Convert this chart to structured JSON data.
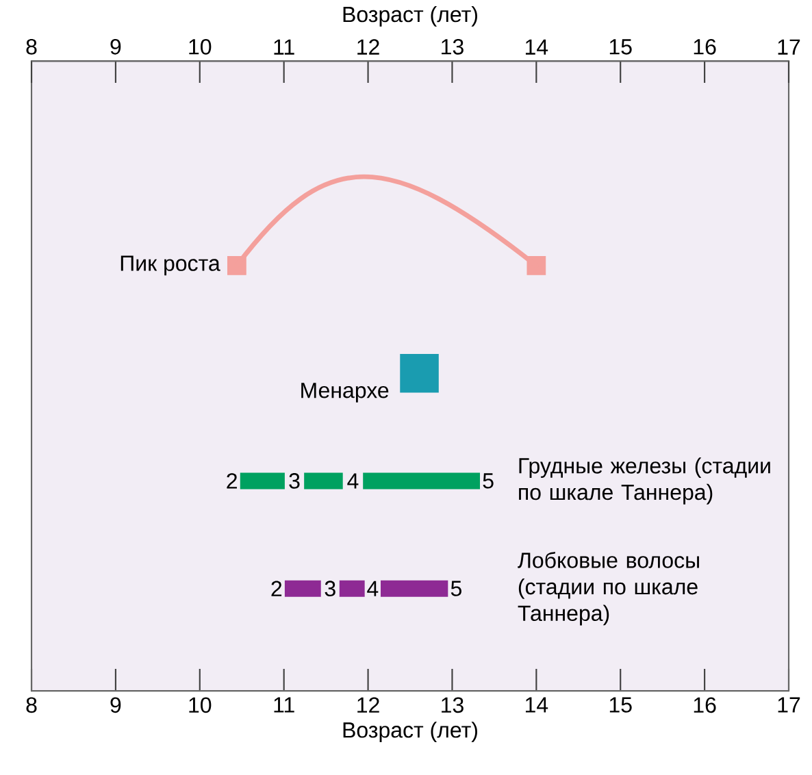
{
  "chart_data": {
    "type": "bar",
    "orientation": "horizontal",
    "xlabel": "Возраст (лет)",
    "x2label": "Возраст (лет)",
    "xlim": [
      8,
      17
    ],
    "xticks": [
      8,
      9,
      10,
      11,
      12,
      13,
      14,
      15,
      16,
      17
    ],
    "x2lim": [
      8,
      17
    ],
    "x2ticks": [
      8,
      9,
      10,
      11,
      12,
      13,
      14,
      15,
      16,
      17
    ],
    "categories": [
      "Пик роста",
      "Менархе",
      "Грудные железы (стадии по шкале Таннера)",
      "Лобковые волосы (стадии по шкале Таннера)"
    ],
    "series": [
      {
        "type": "scatter",
        "color": "#f4a09c",
        "marker": "square",
        "x": [
          "Пик роста",
          "Пик роста"
        ],
        "values": [
          10.44,
          14.0
        ]
      },
      {
        "color": "#1a9cb0",
        "base": [
          null,
          12.38,
          null,
          null
        ],
        "values": [
          null,
          0.46,
          null,
          null
        ]
      },
      {
        "colors": [
          null,
          null,
          "#00a160",
          "#8e2a94"
        ],
        "base": [
          null,
          null,
          10.48,
          11.01
        ],
        "values": [
          null,
          null,
          0.53,
          0.43
        ]
      },
      {
        "colors": [
          null,
          null,
          "#00a160",
          "#8e2a94"
        ],
        "base": [
          null,
          null,
          11.24,
          11.66
        ],
        "values": [
          null,
          null,
          0.46,
          0.3
        ]
      },
      {
        "colors": [
          null,
          null,
          "#00a160",
          "#8e2a94"
        ],
        "base": [
          null,
          null,
          11.94,
          12.15
        ],
        "values": [
          null,
          null,
          1.39,
          0.8
        ]
      }
    ],
    "annotations": [
      "2",
      "3",
      "4",
      "5",
      "2",
      "3",
      "4",
      "5"
    ]
  }
}
